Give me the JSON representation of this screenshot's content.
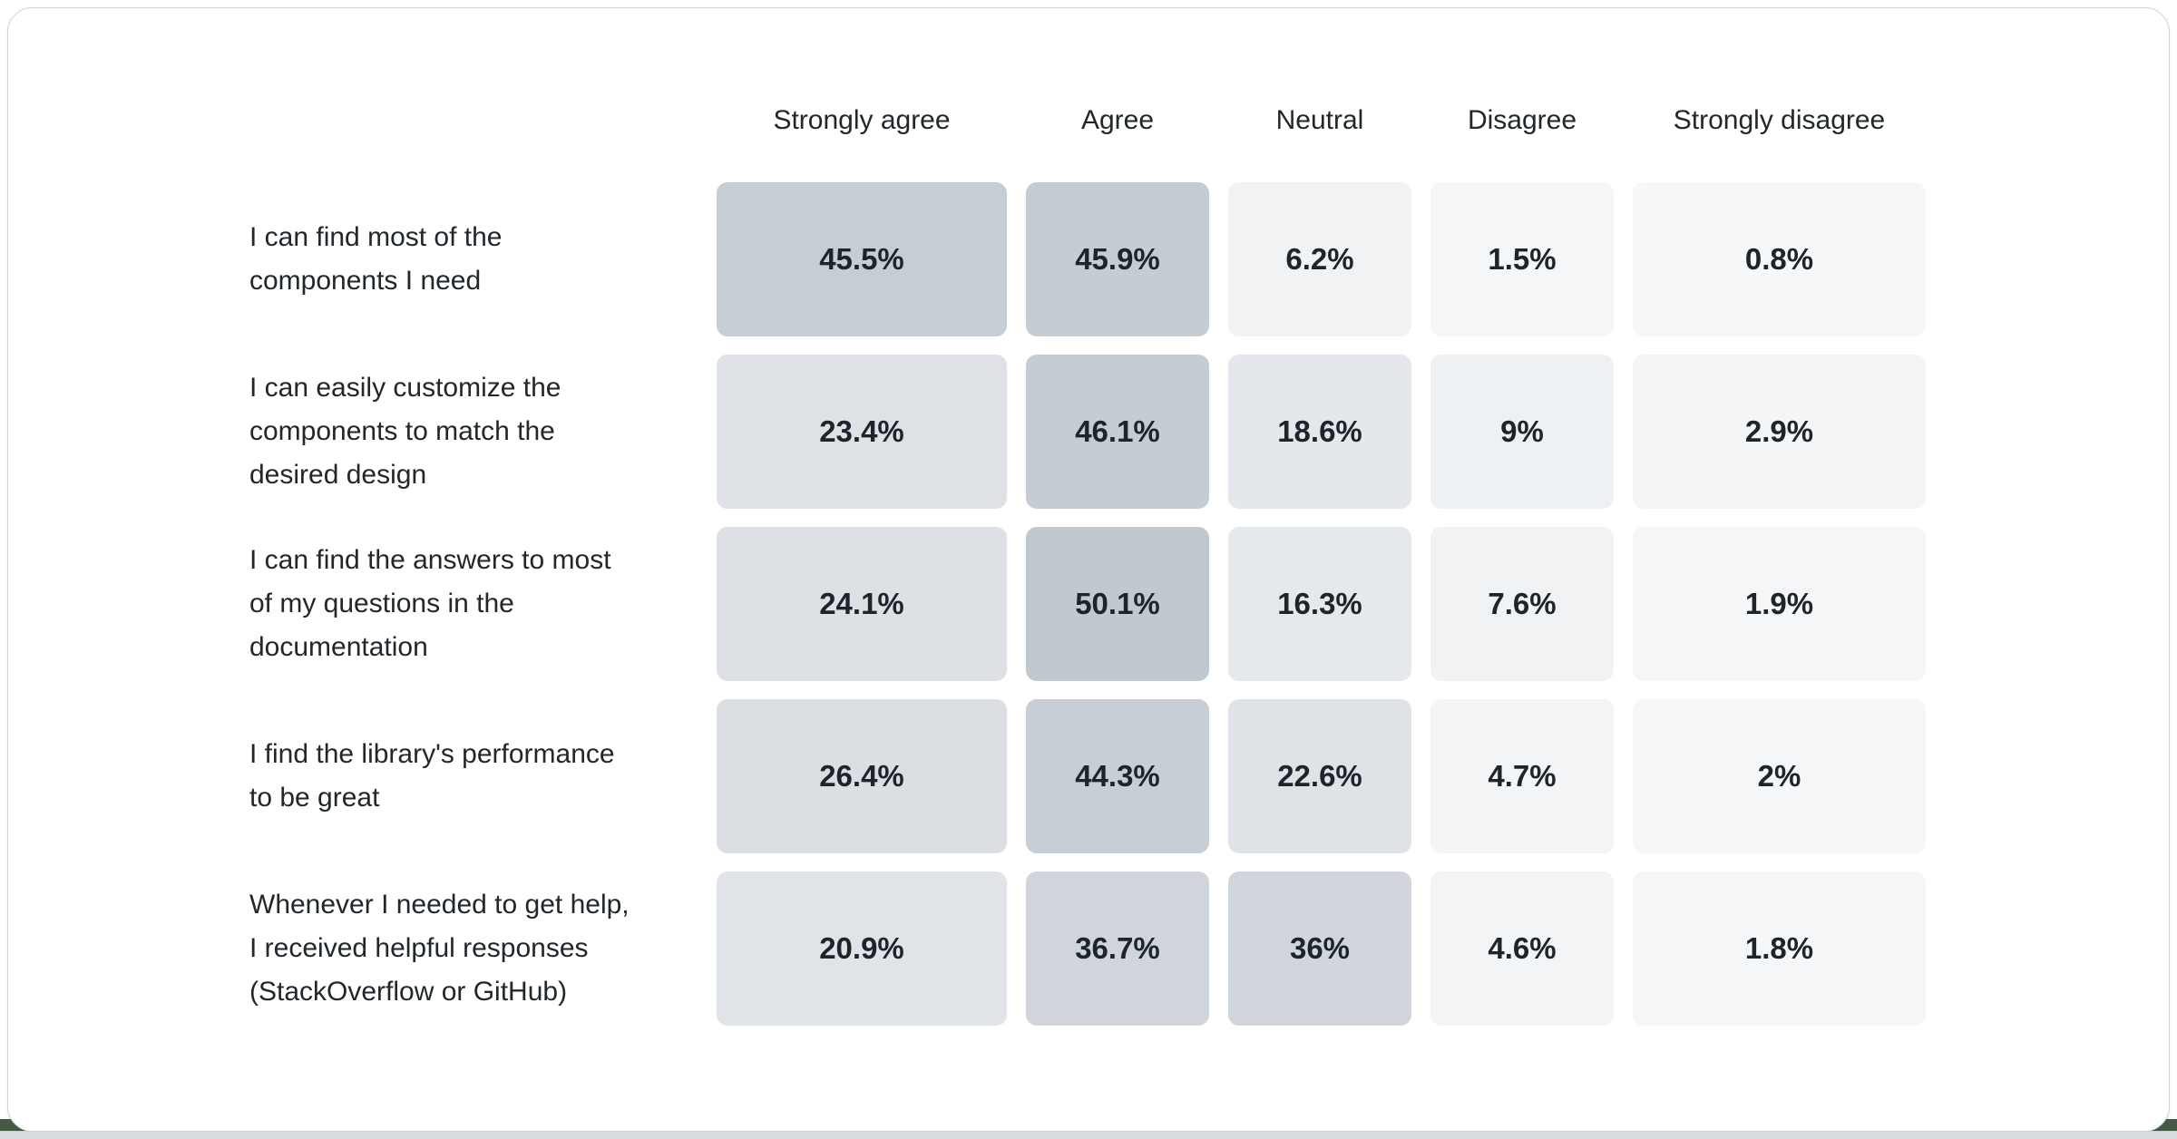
{
  "page": {
    "background": "#ffffff",
    "card": {
      "background": "#ffffff",
      "border_color": "#cdd4da"
    },
    "bottom": {
      "accent_color": "#455a44",
      "bar_color": "#d8dde2"
    },
    "label_color": "#21272a",
    "value_color": "#1d242a"
  },
  "chart_data": {
    "type": "heatmap",
    "title": "",
    "legend_position": "top",
    "columns": [
      "Strongly agree",
      "Agree",
      "Neutral",
      "Disagree",
      "Strongly disagree"
    ],
    "color_scale": {
      "min_color": "#f6f7f8",
      "max_color": "#c1c9d0"
    },
    "rows": [
      {
        "label": "I can find most of the\ncomponents I need",
        "values": [
          45.5,
          45.9,
          6.2,
          1.5,
          0.8
        ],
        "display": [
          "45.5%",
          "45.9%",
          "6.2%",
          "1.5%",
          "0.8%"
        ],
        "colors": [
          "#c6cdd4",
          "#c5cdd3",
          "#f0f2f4",
          "#f5f6f7",
          "#f6f7f8"
        ]
      },
      {
        "label": "I can easily customize the\ncomponents to match the\ndesired design",
        "values": [
          23.4,
          46.1,
          18.6,
          9,
          2.9
        ],
        "display": [
          "23.4%",
          "46.1%",
          "18.6%",
          "9%",
          "2.9%"
        ],
        "colors": [
          "#dee2e6",
          "#c5ccd3",
          "#e4e7eb",
          "#eef1f3",
          "#f4f5f7"
        ]
      },
      {
        "label": "I can find the answers to most\nof my questions in the\ndocumentation",
        "values": [
          24.1,
          50.1,
          16.3,
          7.6,
          1.9
        ],
        "display": [
          "24.1%",
          "50.1%",
          "16.3%",
          "7.6%",
          "1.9%"
        ],
        "colors": [
          "#dde1e5",
          "#c1c9d0",
          "#e6e9ec",
          "#f0f2f4",
          "#f5f6f7"
        ]
      },
      {
        "label": "I find the library's performance\nto be great",
        "values": [
          26.4,
          44.3,
          22.6,
          4.7,
          2
        ],
        "display": [
          "26.4%",
          "44.3%",
          "22.6%",
          "4.7%",
          "2%"
        ],
        "colors": [
          "#dbdfe4",
          "#c7ced5",
          "#dfe3e7",
          "#f2f4f5",
          "#f5f6f7"
        ]
      },
      {
        "label": "Whenever I needed to get help,\nI received helpful responses\n(StackOverflow or GitHub)",
        "values": [
          20.9,
          36.7,
          36,
          4.6,
          1.8
        ],
        "display": [
          "20.9%",
          "36.7%",
          "36%",
          "4.6%",
          "1.8%"
        ],
        "colors": [
          "#e0e4e8",
          "#cfd5db",
          "#d0d6dc",
          "#f2f4f5",
          "#f5f6f8"
        ]
      }
    ]
  }
}
